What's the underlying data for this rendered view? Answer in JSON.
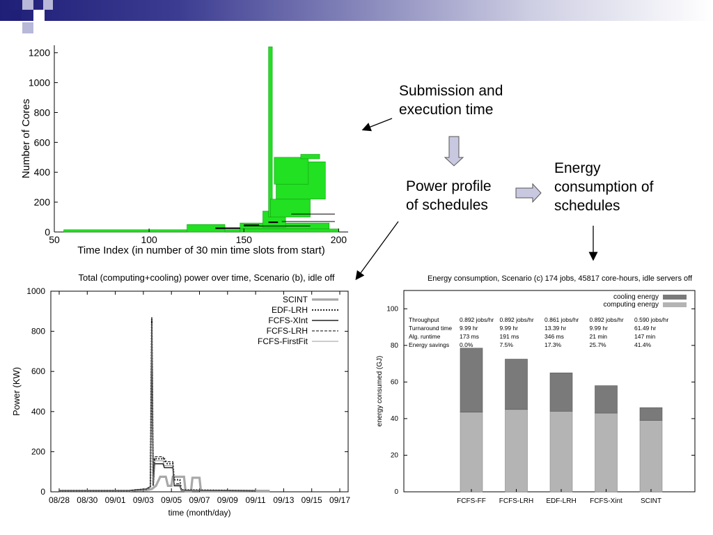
{
  "annotations": {
    "submission": [
      "Submission and",
      "execution time"
    ],
    "power_profile": [
      "Power profile",
      "of schedules"
    ],
    "energy": [
      "Energy",
      "consumption of",
      "schedules"
    ]
  },
  "colors": {
    "header_dark": "#1f1f78",
    "header_square_light": "#b8b8d8",
    "green": "#22e022",
    "bar_dark": "#7a7a7a",
    "bar_light": "#b4b4b4",
    "arrow_fill": "#c8c8e0"
  },
  "chart_data": [
    {
      "type": "bar",
      "description_role": "cores-vs-time",
      "title": "",
      "xlabel": "Time Index (in number of 30 min time slots from start)",
      "ylabel": "Number of Cores",
      "xlim": [
        50,
        205
      ],
      "ylim": [
        0,
        1250
      ],
      "xticks": [
        "50",
        "100",
        "150",
        "200"
      ],
      "yticks": [
        "0",
        "200",
        "400",
        "600",
        "800",
        "1000",
        "1200"
      ],
      "blocks": [
        {
          "x0": 55,
          "x1": 200,
          "y0": 0,
          "y1": 15
        },
        {
          "x0": 120,
          "x1": 140,
          "y0": 0,
          "y1": 50
        },
        {
          "x0": 148,
          "x1": 200,
          "y0": 0,
          "y1": 20
        },
        {
          "x0": 148,
          "x1": 195,
          "y0": 20,
          "y1": 60
        },
        {
          "x0": 160,
          "x1": 172,
          "y0": 30,
          "y1": 140
        },
        {
          "x0": 163,
          "x1": 165,
          "y0": 100,
          "y1": 1240
        },
        {
          "x0": 164,
          "x1": 185,
          "y0": 100,
          "y1": 220
        },
        {
          "x0": 167,
          "x1": 193,
          "y0": 220,
          "y1": 470
        },
        {
          "x0": 166,
          "x1": 184,
          "y0": 320,
          "y1": 500
        },
        {
          "x0": 180,
          "x1": 190,
          "y0": 490,
          "y1": 520
        }
      ],
      "black_marks": [
        {
          "x0": 135,
          "x1": 148,
          "y0": 20,
          "y1": 30
        },
        {
          "x0": 150,
          "x1": 158,
          "y0": 40,
          "y1": 50
        },
        {
          "x0": 163,
          "x1": 168,
          "y0": 60,
          "y1": 70
        }
      ]
    },
    {
      "type": "line",
      "title": "Total (computing+cooling) power over time, Scenario (b), idle off",
      "xlabel": "time (month/day)",
      "ylabel": "Power (KW)",
      "ylim": [
        0,
        1000
      ],
      "xticks": [
        "08/28",
        "08/30",
        "09/01",
        "09/03",
        "09/05",
        "09/07",
        "09/09",
        "09/11",
        "09/13",
        "09/15",
        "09/17"
      ],
      "yticks": [
        "0",
        "200",
        "400",
        "600",
        "800",
        "1000"
      ],
      "legend_position": "top-right",
      "series": [
        {
          "name": "SCINT",
          "style": "thick-gray",
          "points": [
            [
              0.0,
              5
            ],
            [
              5.0,
              5
            ],
            [
              5.5,
              8
            ],
            [
              6.3,
              10
            ],
            [
              6.6,
              14
            ],
            [
              6.9,
              30
            ],
            [
              7.2,
              75
            ],
            [
              7.6,
              75
            ],
            [
              7.75,
              30
            ],
            [
              8.0,
              30
            ],
            [
              8.1,
              75
            ],
            [
              8.9,
              75
            ],
            [
              9.0,
              5
            ],
            [
              9.4,
              5
            ],
            [
              9.5,
              70
            ],
            [
              10.0,
              70
            ],
            [
              10.1,
              5
            ],
            [
              15.0,
              5
            ]
          ]
        },
        {
          "name": "EDF-LRH",
          "style": "dotted",
          "points": [
            [
              0.0,
              5
            ],
            [
              5.0,
              5
            ],
            [
              5.5,
              10
            ],
            [
              6.2,
              12
            ],
            [
              6.4,
              20
            ],
            [
              6.5,
              25
            ],
            [
              6.6,
              860
            ],
            [
              6.7,
              30
            ],
            [
              6.8,
              165
            ],
            [
              7.5,
              165
            ],
            [
              7.7,
              140
            ],
            [
              8.1,
              140
            ],
            [
              8.2,
              60
            ],
            [
              8.6,
              60
            ],
            [
              8.7,
              10
            ],
            [
              14.0,
              5
            ]
          ]
        },
        {
          "name": "FCFS-XInt",
          "style": "solid-dark",
          "points": [
            [
              0.0,
              5
            ],
            [
              5.0,
              5
            ],
            [
              5.5,
              10
            ],
            [
              6.2,
              14
            ],
            [
              6.4,
              22
            ],
            [
              6.5,
              25
            ],
            [
              6.6,
              870
            ],
            [
              6.7,
              30
            ],
            [
              6.8,
              140
            ],
            [
              7.4,
              140
            ],
            [
              7.5,
              120
            ],
            [
              8.1,
              120
            ],
            [
              8.2,
              30
            ],
            [
              8.6,
              30
            ],
            [
              8.7,
              8
            ],
            [
              14.0,
              5
            ]
          ]
        },
        {
          "name": "FCFS-LRH",
          "style": "dashed",
          "points": [
            [
              0.0,
              5
            ],
            [
              5.0,
              5
            ],
            [
              5.5,
              10
            ],
            [
              6.2,
              14
            ],
            [
              6.4,
              22
            ],
            [
              6.5,
              25
            ],
            [
              6.6,
              850
            ],
            [
              6.7,
              30
            ],
            [
              6.8,
              175
            ],
            [
              7.4,
              175
            ],
            [
              7.5,
              150
            ],
            [
              8.1,
              150
            ],
            [
              8.2,
              40
            ],
            [
              8.6,
              40
            ],
            [
              8.7,
              8
            ],
            [
              14.0,
              5
            ]
          ]
        },
        {
          "name": "FCFS-FirstFit",
          "style": "thin-gray",
          "points": [
            [
              0.0,
              5
            ],
            [
              5.0,
              5
            ],
            [
              5.5,
              10
            ],
            [
              6.2,
              12
            ],
            [
              6.4,
              20
            ],
            [
              6.5,
              25
            ],
            [
              6.6,
              840
            ],
            [
              6.7,
              30
            ],
            [
              6.8,
              155
            ],
            [
              7.4,
              155
            ],
            [
              7.5,
              130
            ],
            [
              8.1,
              130
            ],
            [
              8.2,
              35
            ],
            [
              8.6,
              35
            ],
            [
              8.7,
              8
            ],
            [
              14.0,
              5
            ]
          ]
        }
      ]
    },
    {
      "type": "bar",
      "stacked": true,
      "title": "Energy consumption, Scenario (c) 174 jobs, 45817 core-hours, idle servers off",
      "xlabel": "",
      "ylabel": "energy consumed (GJ)",
      "ylim": [
        0,
        110
      ],
      "yticks": [
        "0",
        "20",
        "40",
        "60",
        "80",
        "100"
      ],
      "legend_position": "top-right",
      "categories": [
        "FCFS-FF",
        "FCFS-LRH",
        "EDF-LRH",
        "FCFS-Xint",
        "SCINT"
      ],
      "series": [
        {
          "name": "computing energy",
          "values": [
            43.5,
            45,
            44,
            43,
            39
          ]
        },
        {
          "name": "cooling energy",
          "values": [
            35,
            27.5,
            21,
            15,
            7
          ]
        }
      ],
      "table": {
        "row_labels": [
          "Throughput",
          "Turnaround time",
          "Alg. runtime",
          "Energy savings"
        ],
        "columns": [
          [
            "0.892 jobs/hr",
            "9.99 hr",
            "173 ms",
            "0.0%"
          ],
          [
            "0.892 jobs/hr",
            "9.99 hr",
            "191 ms",
            "7.5%"
          ],
          [
            "0.861 jobs/hr",
            "13.39 hr",
            "346 ms",
            "17.3%"
          ],
          [
            "0.892 jobs/hr",
            "9.99 hr",
            "21 min",
            "25.7%"
          ],
          [
            "0.590 jobs/hr",
            "61.49 hr",
            "147 min",
            "41.4%"
          ]
        ]
      }
    }
  ]
}
